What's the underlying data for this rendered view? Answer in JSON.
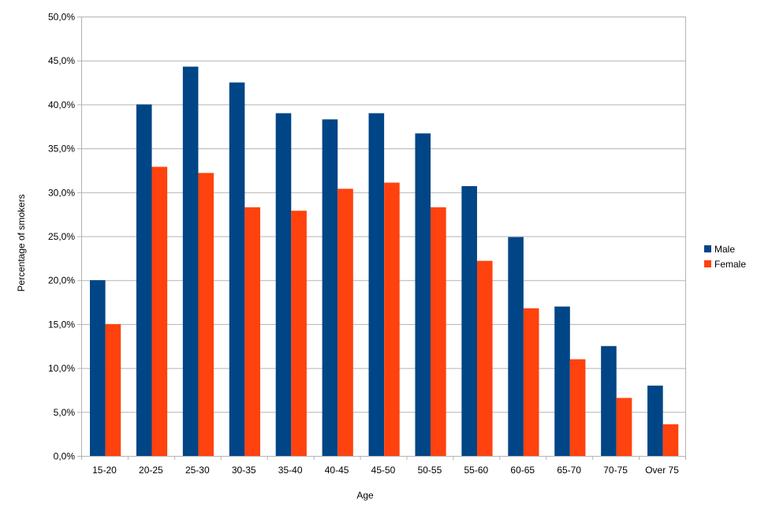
{
  "chart_data": {
    "type": "bar",
    "title": "",
    "xlabel": "Age",
    "ylabel": "Percentage of smokers",
    "ylim": [
      0,
      50
    ],
    "yticks": [
      "0,0%",
      "5,0%",
      "10,0%",
      "15,0%",
      "20,0%",
      "25,0%",
      "30,0%",
      "35,0%",
      "40,0%",
      "45,0%",
      "50,0%"
    ],
    "grid": true,
    "legend_position": "right",
    "categories": [
      "15-20",
      "20-25",
      "25-30",
      "30-35",
      "35-40",
      "40-45",
      "45-50",
      "50-55",
      "55-60",
      "60-65",
      "65-70",
      "70-75",
      "Over 75"
    ],
    "series": [
      {
        "name": "Male",
        "color": "#004586",
        "values": [
          20.0,
          40.0,
          44.3,
          42.5,
          39.0,
          38.3,
          39.0,
          36.7,
          30.7,
          24.9,
          17.0,
          12.5,
          8.0
        ]
      },
      {
        "name": "Female",
        "color": "#ff420e",
        "values": [
          15.0,
          32.9,
          32.2,
          28.3,
          27.9,
          30.4,
          31.1,
          28.3,
          22.2,
          16.8,
          11.0,
          6.6,
          3.6
        ]
      }
    ]
  }
}
